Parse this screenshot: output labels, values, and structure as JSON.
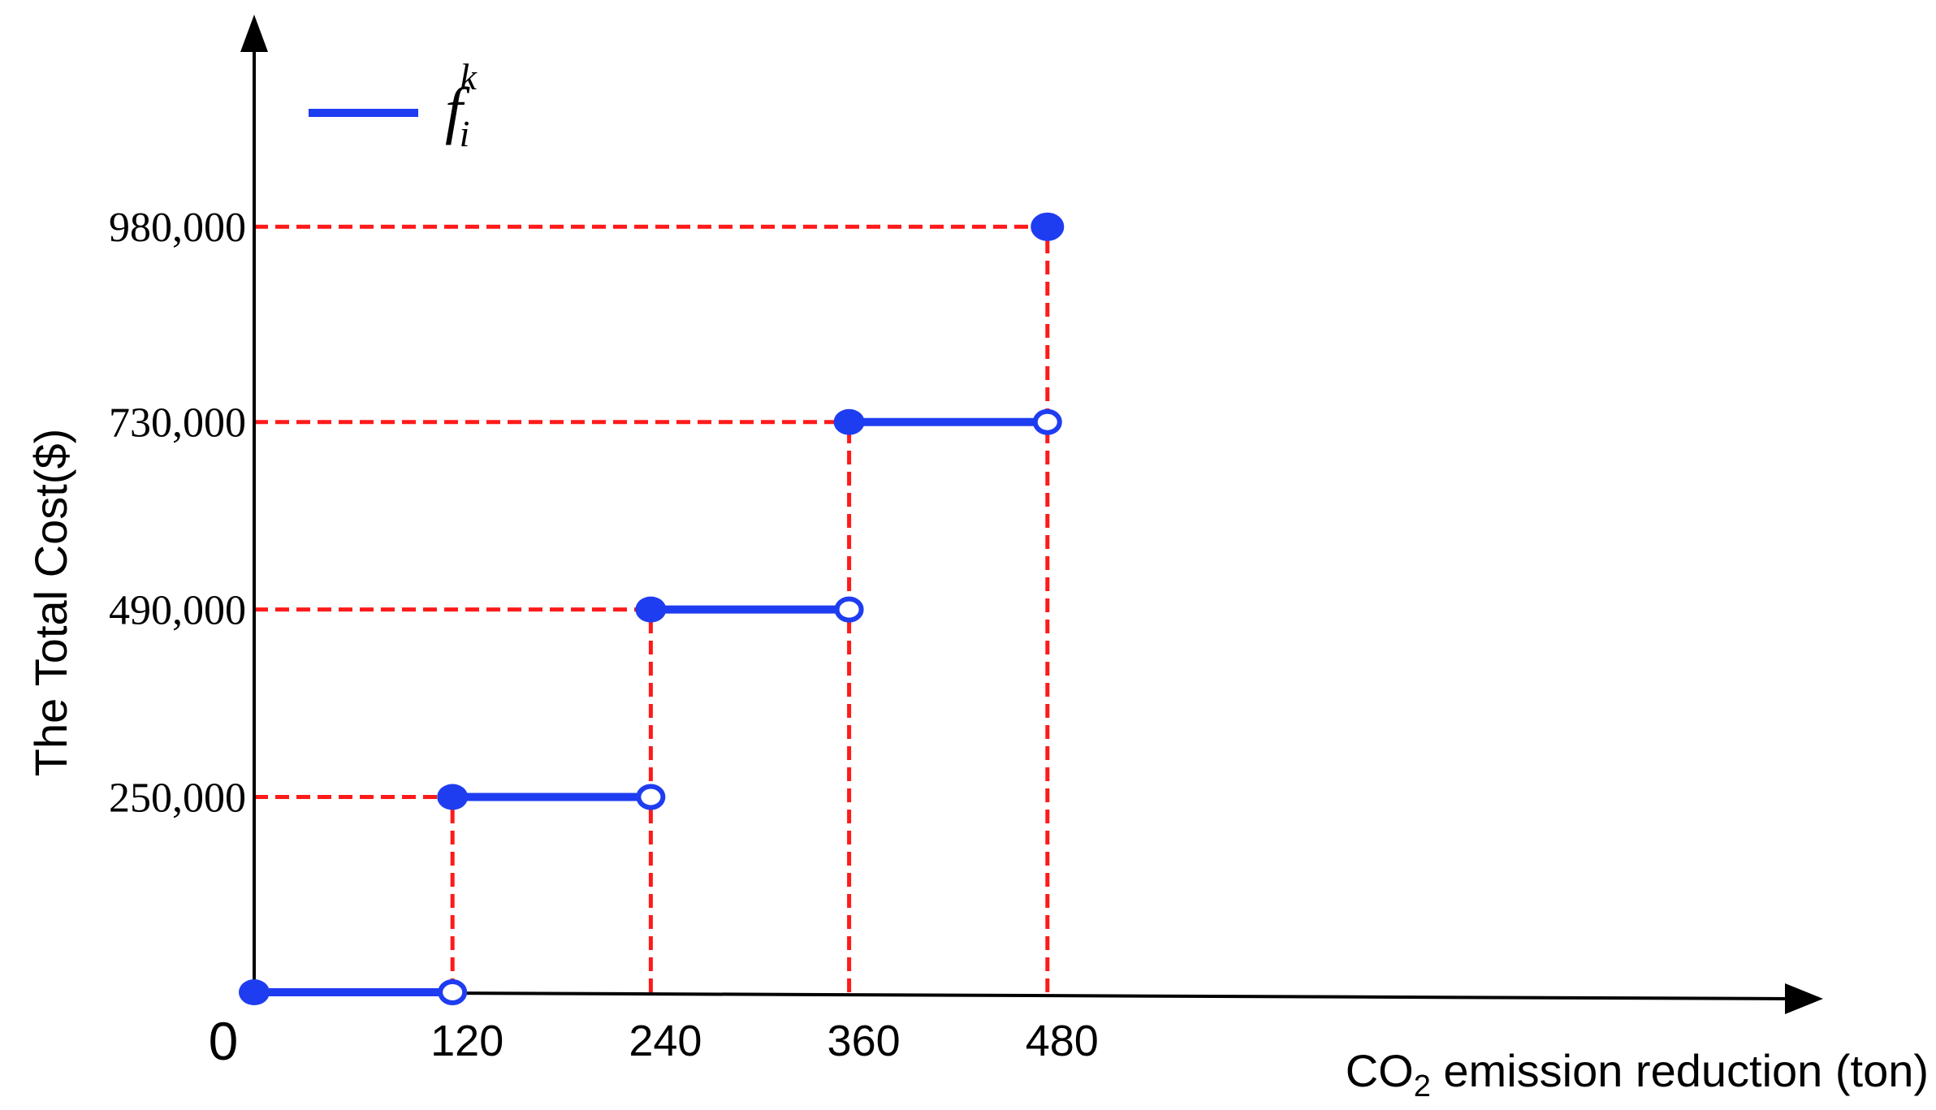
{
  "chart_data": {
    "type": "line",
    "title": "",
    "xlabel": {
      "prefix": "CO",
      "subscript": "2",
      "suffix": " emission reduction (ton)"
    },
    "ylabel": "The Total Cost($)",
    "origin_label": "0",
    "x_ticks": [
      "120",
      "240",
      "360",
      "480"
    ],
    "y_ticks": [
      "250,000",
      "490,000",
      "730,000",
      "980,000"
    ],
    "xlim": [
      0,
      960
    ],
    "ylim": [
      0,
      1100000
    ],
    "grid": false,
    "legend": {
      "position": "top-left",
      "entries": [
        {
          "symbol": "f",
          "subscript": "i",
          "superscript": "k",
          "color": "#1f3df0"
        }
      ]
    },
    "series": [
      {
        "color": "#1f3df0",
        "style": "step",
        "segments": [
          {
            "x0": 0,
            "x1": 120,
            "y": 0,
            "closed_start": true,
            "open_end": true
          },
          {
            "x0": 120,
            "x1": 240,
            "y": 250000,
            "closed_start": true,
            "open_end": true
          },
          {
            "x0": 240,
            "x1": 360,
            "y": 490000,
            "closed_start": true,
            "open_end": true
          },
          {
            "x0": 360,
            "x1": 480,
            "y": 730000,
            "closed_start": true,
            "open_end": true
          }
        ],
        "points": [
          {
            "x": 480,
            "y": 980000,
            "filled": true
          }
        ]
      }
    ],
    "reference_lines": {
      "color": "#ff1a1a",
      "style": "dashed",
      "horizontal": [
        {
          "y": 250000,
          "x_to": 120
        },
        {
          "y": 490000,
          "x_to": 240
        },
        {
          "y": 730000,
          "x_to": 360
        },
        {
          "y": 980000,
          "x_to": 480
        }
      ],
      "vertical": [
        {
          "x": 120,
          "y_to": 250000
        },
        {
          "x": 240,
          "y_to": 490000
        },
        {
          "x": 360,
          "y_to": 730000
        },
        {
          "x": 480,
          "y_to": 980000
        }
      ]
    }
  }
}
